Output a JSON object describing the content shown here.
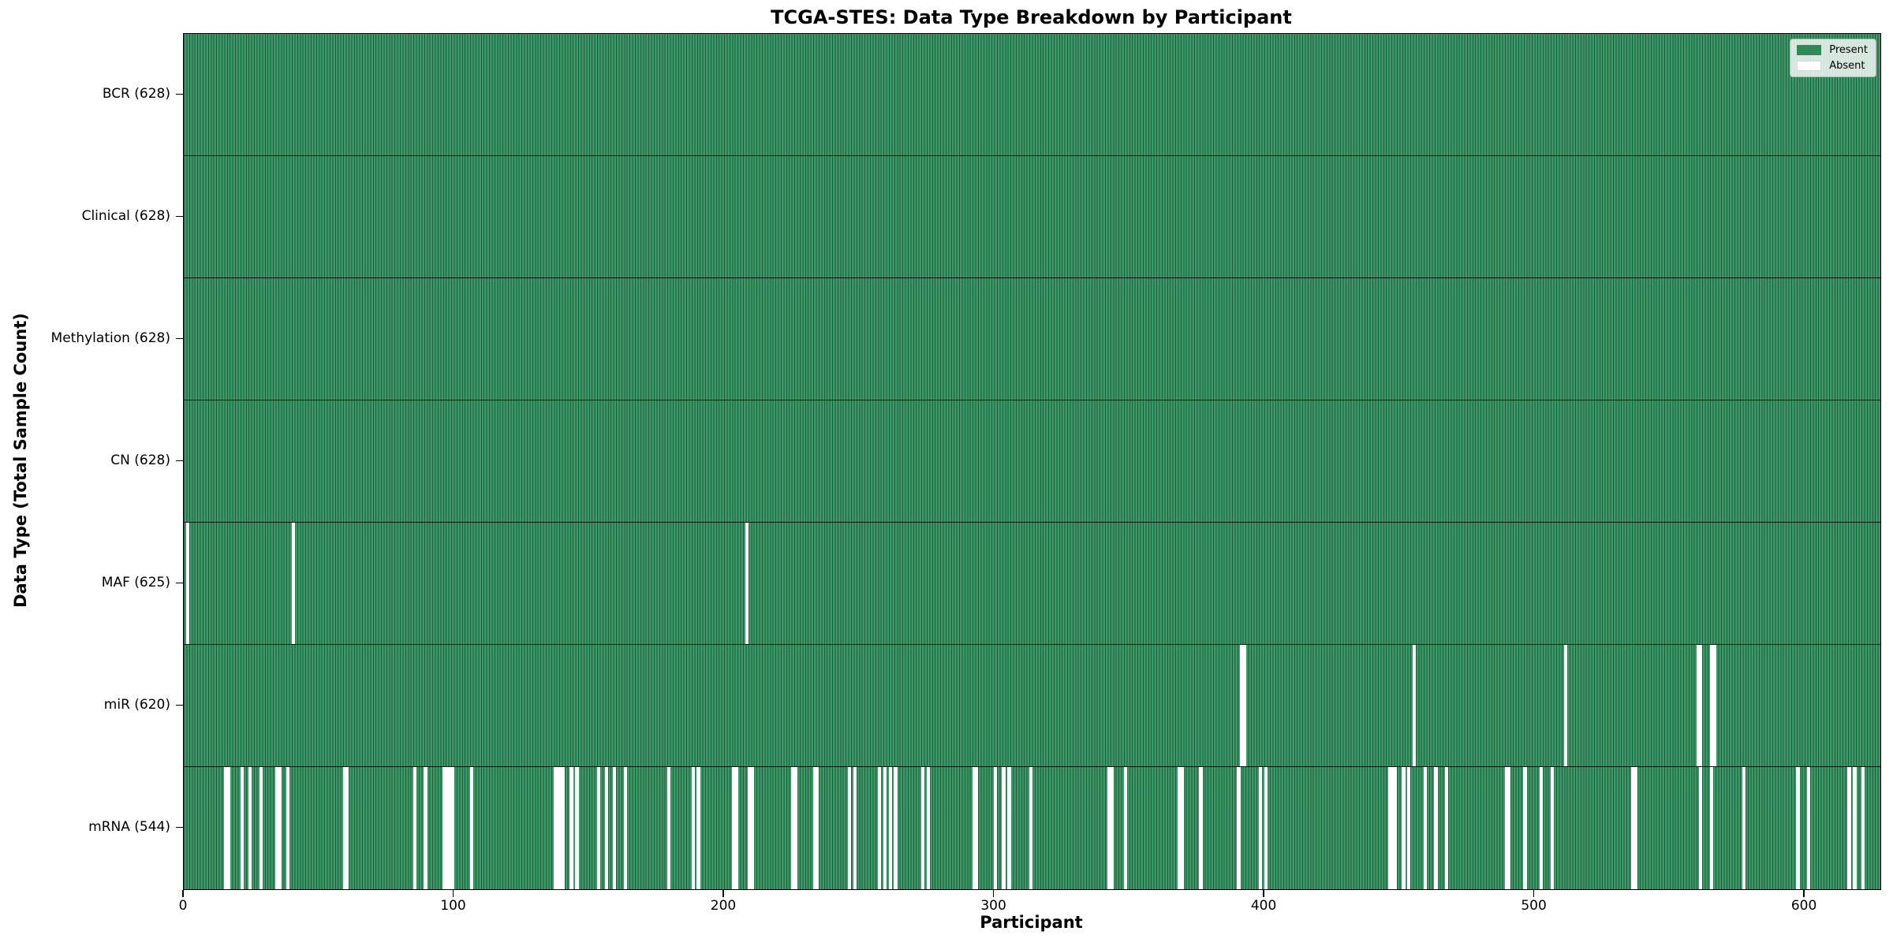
{
  "title": "TCGA-STES: Data Type Breakdown by Participant",
  "legend": {
    "present_label": "Present",
    "absent_label": "Absent"
  },
  "colors": {
    "present": "#2e8b57",
    "present_fill": "#3c9a68",
    "absent": "#ffffff",
    "bar_edge": "#0a2816",
    "row_separator": "#000000"
  },
  "chart_data": {
    "type": "heatmap",
    "title": "TCGA-STES: Data Type Breakdown by Participant",
    "xlabel": "Participant",
    "ylabel": "Data Type (Total Sample Count)",
    "x_range": [
      0,
      628
    ],
    "x_ticks": [
      0,
      100,
      200,
      300,
      400,
      500,
      600
    ],
    "total_participants": 628,
    "legend_entries": [
      "Present",
      "Absent"
    ],
    "legend_position": "upper right",
    "grid": false,
    "rows": [
      {
        "label": "BCR (628)",
        "data_type": "BCR",
        "present_count": 628,
        "absent_count": 0,
        "absent_participants": []
      },
      {
        "label": "Clinical (628)",
        "data_type": "Clinical",
        "present_count": 628,
        "absent_count": 0,
        "absent_participants": []
      },
      {
        "label": "Methylation (628)",
        "data_type": "Methylation",
        "present_count": 628,
        "absent_count": 0,
        "absent_participants": []
      },
      {
        "label": "CN (628)",
        "data_type": "CN",
        "present_count": 628,
        "absent_count": 0,
        "absent_participants": []
      },
      {
        "label": "MAF (625)",
        "data_type": "MAF",
        "present_count": 625,
        "absent_count": 3,
        "absent_participants": [
          1,
          40,
          208
        ]
      },
      {
        "label": "miR (620)",
        "data_type": "miR",
        "present_count": 620,
        "absent_count": 8,
        "absent_participants": [
          391,
          392,
          455,
          511,
          560,
          561,
          565,
          566
        ]
      },
      {
        "label": "mRNA (544)",
        "data_type": "mRNA",
        "present_count": 544,
        "absent_count": 84,
        "absent_participants": [
          15,
          16,
          21,
          24,
          28,
          34,
          35,
          38,
          59,
          60,
          85,
          89,
          96,
          97,
          98,
          99,
          106,
          137,
          138,
          139,
          140,
          143,
          145,
          153,
          156,
          159,
          163,
          179,
          188,
          190,
          203,
          204,
          209,
          210,
          225,
          226,
          233,
          234,
          246,
          248,
          257,
          259,
          261,
          263,
          273,
          275,
          292,
          293,
          300,
          303,
          305,
          313,
          342,
          343,
          348,
          368,
          369,
          376,
          390,
          398,
          400,
          446,
          447,
          448,
          451,
          453,
          459,
          463,
          467,
          489,
          490,
          496,
          502,
          506,
          536,
          537,
          561,
          565,
          577,
          597,
          601,
          616,
          618,
          621
        ]
      }
    ]
  }
}
